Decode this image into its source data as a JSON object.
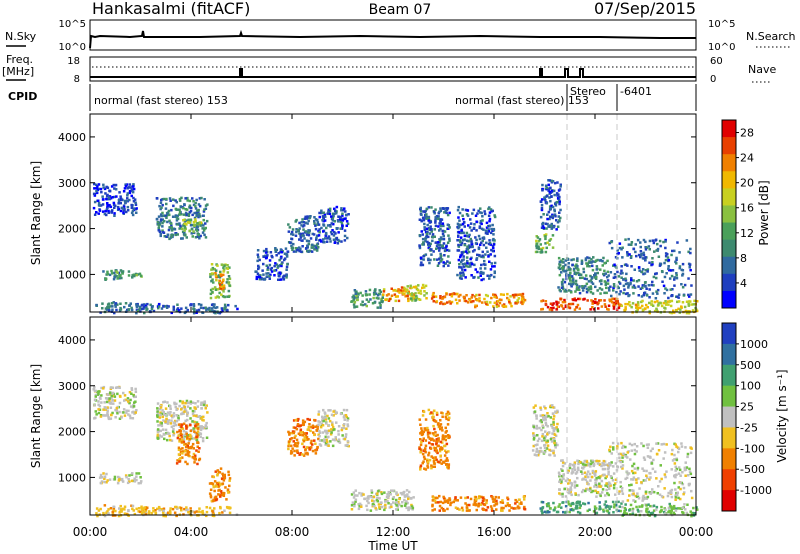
{
  "header": {
    "station": "Hankasalmi (fitACF)",
    "beam": "Beam 07",
    "date": "07/Sep/2015"
  },
  "top_panels": {
    "nsky_label": "N.Sky",
    "nsky_ticks": [
      "10^5",
      "10^0"
    ],
    "nsearch_label": "N.Search",
    "nsearch_ticks": [
      "10^5",
      "10^0"
    ],
    "freq_label_1": "Freq.",
    "freq_label_2": "[MHz]",
    "freq_ticks": [
      "18",
      "8"
    ],
    "nave_label": "Nave",
    "nave_ticks": [
      "60",
      "0"
    ],
    "cpid_label": "CPID",
    "cpid_entries": [
      {
        "text": "normal (fast stereo) 153",
        "at_hour": 0.1
      },
      {
        "text": "normal (fast stereo) 153",
        "at_hour": 14.8
      },
      {
        "text": "Stereo",
        "at_hour": 19.0
      },
      {
        "text": "-6401",
        "at_hour": 20.8
      }
    ]
  },
  "chart_data": [
    {
      "type": "heatmap",
      "name": "power",
      "ylabel": "Slant Range [km]",
      "ylim": [
        180,
        4500
      ],
      "yticks": [
        "1000",
        "2000",
        "3000",
        "4000"
      ],
      "ytick_values": [
        1000,
        2000,
        3000,
        4000
      ],
      "xlim": [
        0,
        24
      ],
      "colorbar": {
        "label": "Power [dB]",
        "ticks": [
          "28",
          "24",
          "20",
          "16",
          "12",
          "8",
          "4"
        ],
        "tick_values": [
          28,
          24,
          20,
          16,
          12,
          8,
          4
        ],
        "range": [
          0,
          30
        ],
        "colors": [
          "#0000ff",
          "#1f3fbf",
          "#306a9f",
          "#3d8a6f",
          "#4aa05a",
          "#8ac040",
          "#c8d020",
          "#f0b800",
          "#f08000",
          "#e84000",
          "#e00000"
        ]
      },
      "regions": [
        {
          "t0": 0.2,
          "t1": 2.2,
          "r0": 180,
          "r1": 420,
          "v": 7
        },
        {
          "t0": 0.3,
          "t1": 1.2,
          "r0": 900,
          "r1": 1120,
          "v": 9
        },
        {
          "t0": 1.0,
          "t1": 2.0,
          "r0": 950,
          "r1": 1100,
          "v": 12
        },
        {
          "t0": 0.1,
          "t1": 1.8,
          "r0": 2300,
          "r1": 3000,
          "v": 4
        },
        {
          "t0": 2.6,
          "t1": 4.6,
          "r0": 1800,
          "r1": 2700,
          "v": 8
        },
        {
          "t0": 3.6,
          "t1": 4.4,
          "r0": 1950,
          "r1": 2250,
          "v": 16
        },
        {
          "t0": 4.7,
          "t1": 5.5,
          "r0": 500,
          "r1": 1250,
          "v": 14
        },
        {
          "t0": 4.9,
          "t1": 5.3,
          "r0": 700,
          "r1": 1100,
          "v": 22
        },
        {
          "t0": 2.0,
          "t1": 5.8,
          "r0": 180,
          "r1": 380,
          "v": 6
        },
        {
          "t0": 6.5,
          "t1": 7.8,
          "r0": 900,
          "r1": 1600,
          "v": 5
        },
        {
          "t0": 7.8,
          "t1": 9.0,
          "r0": 1500,
          "r1": 2300,
          "v": 7
        },
        {
          "t0": 9.0,
          "t1": 10.2,
          "r0": 1700,
          "r1": 2500,
          "v": 5
        },
        {
          "t0": 10.3,
          "t1": 11.6,
          "r0": 300,
          "r1": 700,
          "v": 10
        },
        {
          "t0": 11.5,
          "t1": 12.8,
          "r0": 450,
          "r1": 750,
          "v": 22
        },
        {
          "t0": 12.5,
          "t1": 13.3,
          "r0": 450,
          "r1": 800,
          "v": 16
        },
        {
          "t0": 13.0,
          "t1": 14.2,
          "r0": 1200,
          "r1": 2500,
          "v": 6
        },
        {
          "t0": 13.5,
          "t1": 15.3,
          "r0": 380,
          "r1": 620,
          "v": 24
        },
        {
          "t0": 15.2,
          "t1": 17.2,
          "r0": 300,
          "r1": 600,
          "v": 22
        },
        {
          "t0": 14.5,
          "t1": 16.0,
          "r0": 900,
          "r1": 2500,
          "v": 5
        },
        {
          "t0": 17.6,
          "t1": 18.3,
          "r0": 1500,
          "r1": 1900,
          "v": 14
        },
        {
          "t0": 17.8,
          "t1": 18.6,
          "r0": 2000,
          "r1": 3100,
          "v": 5
        },
        {
          "t0": 17.8,
          "t1": 21.0,
          "r0": 250,
          "r1": 500,
          "v": 26
        },
        {
          "t0": 18.5,
          "t1": 20.5,
          "r0": 600,
          "r1": 1400,
          "v": 9
        },
        {
          "t0": 20.5,
          "t1": 23.8,
          "r0": 500,
          "r1": 1800,
          "v": 6
        },
        {
          "t0": 21.0,
          "t1": 24.0,
          "r0": 180,
          "r1": 450,
          "v": 18
        }
      ]
    },
    {
      "type": "heatmap",
      "name": "velocity",
      "ylabel": "Slant Range [km]",
      "ylim": [
        180,
        4500
      ],
      "yticks": [
        "1000",
        "2000",
        "3000",
        "4000"
      ],
      "ytick_values": [
        1000,
        2000,
        3000,
        4000
      ],
      "xlim": [
        0,
        24
      ],
      "xticks": [
        "00:00",
        "04:00",
        "08:00",
        "12:00",
        "16:00",
        "20:00",
        "00:00"
      ],
      "xtick_values": [
        0,
        4,
        8,
        12,
        16,
        20,
        24
      ],
      "xlabel": "Time UT",
      "colorbar": {
        "label": "Velocity [m s⁻¹]",
        "ticks": [
          "1000",
          "500",
          "100",
          "25",
          "-25",
          "-100",
          "-500",
          "-1000"
        ],
        "colors": [
          "#2040c0",
          "#3070a0",
          "#40a070",
          "#70c040",
          "#c0c0c0",
          "#f0c020",
          "#f08000",
          "#f04000",
          "#e00000"
        ]
      },
      "regions": [
        {
          "t0": 0.2,
          "t1": 2.2,
          "r0": 180,
          "r1": 420,
          "c": 5
        },
        {
          "t0": 0.3,
          "t1": 2.0,
          "r0": 900,
          "r1": 1120,
          "c": 4
        },
        {
          "t0": 0.1,
          "t1": 1.8,
          "r0": 2300,
          "r1": 3000,
          "c": 4
        },
        {
          "t0": 2.6,
          "t1": 4.6,
          "r0": 1800,
          "r1": 2700,
          "c": 4
        },
        {
          "t0": 3.4,
          "t1": 4.3,
          "r0": 1300,
          "r1": 2200,
          "c": 6
        },
        {
          "t0": 4.7,
          "t1": 5.5,
          "r0": 500,
          "r1": 1250,
          "c": 6
        },
        {
          "t0": 2.0,
          "t1": 5.8,
          "r0": 180,
          "r1": 380,
          "c": 5
        },
        {
          "t0": 7.8,
          "t1": 9.0,
          "r0": 1500,
          "r1": 2300,
          "c": 6
        },
        {
          "t0": 9.0,
          "t1": 10.2,
          "r0": 1700,
          "r1": 2500,
          "c": 4
        },
        {
          "t0": 10.3,
          "t1": 12.8,
          "r0": 300,
          "r1": 750,
          "c": 4
        },
        {
          "t0": 13.0,
          "t1": 14.2,
          "r0": 1200,
          "r1": 2500,
          "c": 6
        },
        {
          "t0": 13.5,
          "t1": 17.2,
          "r0": 300,
          "r1": 620,
          "c": 6
        },
        {
          "t0": 17.5,
          "t1": 18.5,
          "r0": 1500,
          "r1": 2600,
          "c": 4
        },
        {
          "t0": 17.8,
          "t1": 21.0,
          "r0": 250,
          "r1": 500,
          "c": 2
        },
        {
          "t0": 18.5,
          "t1": 20.5,
          "r0": 600,
          "r1": 1400,
          "c": 4
        },
        {
          "t0": 20.5,
          "t1": 23.8,
          "r0": 500,
          "r1": 1800,
          "c": 4
        },
        {
          "t0": 21.0,
          "t1": 24.0,
          "r0": 180,
          "r1": 450,
          "c": 3
        }
      ]
    }
  ],
  "colors": {
    "gate_lines": "#c8c8c8",
    "frame": "#000000"
  }
}
